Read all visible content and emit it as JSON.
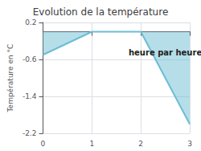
{
  "chart_data": {
    "type": "area",
    "title": "Evolution de la température",
    "ylabel": "Température en °C",
    "x": [
      0,
      1,
      2,
      3
    ],
    "values": [
      -0.5,
      0.0,
      0.0,
      -2.0
    ],
    "color": "#6bbdd4",
    "xlim": [
      0,
      3
    ],
    "xticks": [
      0,
      1,
      2,
      3
    ],
    "ylim": [
      -2.2,
      0.2
    ],
    "yticks": [
      0.2,
      -0.6,
      -1.4,
      -2.2
    ],
    "grid": true,
    "annotations": [
      {
        "text": "heure par heure",
        "x": 2.5,
        "y": -0.45
      }
    ]
  }
}
